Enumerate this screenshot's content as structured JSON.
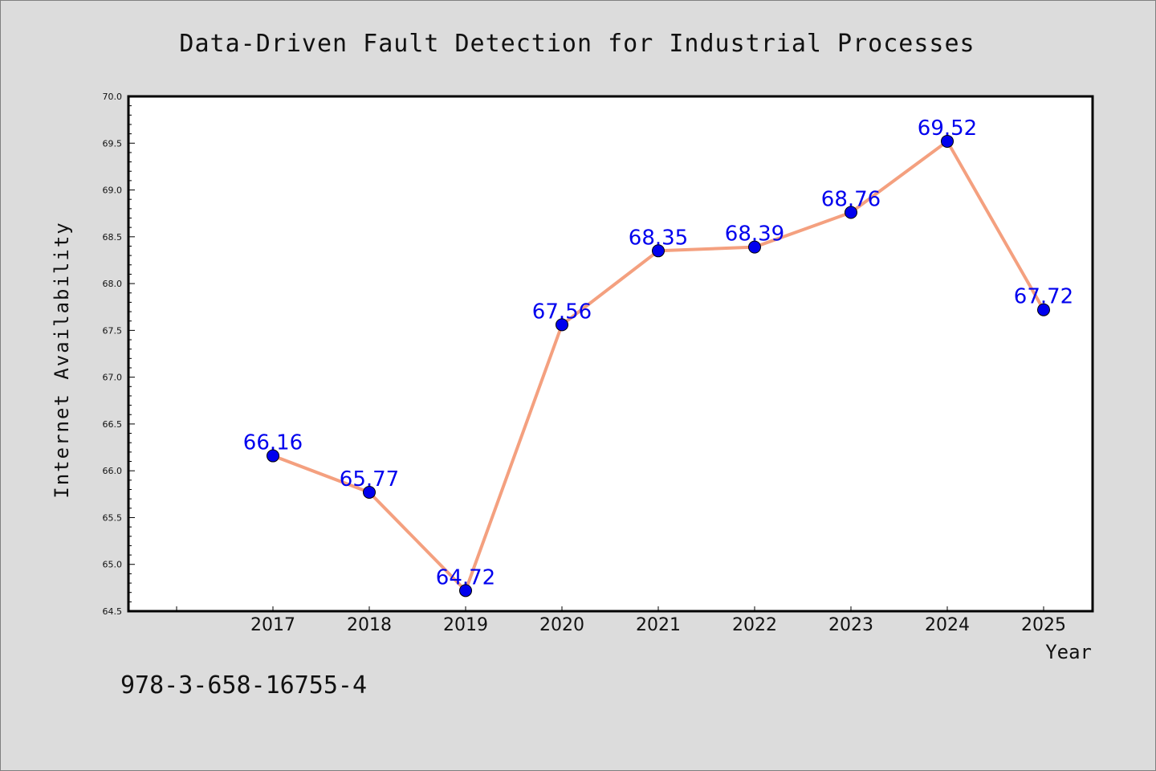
{
  "chart_data": {
    "type": "line",
    "title": "Data-Driven Fault Detection for Industrial Processes",
    "xlabel": "Year",
    "ylabel": "Internet Availability",
    "categories": [
      "2017",
      "2018",
      "2019",
      "2020",
      "2021",
      "2022",
      "2023",
      "2024",
      "2025"
    ],
    "series": [
      {
        "values": [
          66.16,
          65.77,
          64.72,
          67.56,
          68.35,
          68.39,
          68.76,
          69.52,
          67.72
        ],
        "line_color": "#f4a07f",
        "marker_color": "#0000ee"
      }
    ],
    "data_labels": [
      "66.16",
      "65.77",
      "64.72",
      "67.56",
      "68.35",
      "68.39",
      "68.76",
      "69.52",
      "67.72"
    ],
    "ylim": [
      64.5,
      70.0
    ],
    "yticks": [
      "64.5",
      "65.0",
      "65.5",
      "66.0",
      "66.5",
      "67.0",
      "67.5",
      "68.0",
      "68.5",
      "69.0",
      "69.5",
      "70.0"
    ],
    "grid": false,
    "legend": "none"
  },
  "footer": {
    "isbn": "978-3-658-16755-4"
  },
  "colors": {
    "background": "#dcdcdc",
    "plot_background": "#ffffff",
    "line": "#f4a07f",
    "marker": "#0000ee",
    "data_label": "#0000ee"
  }
}
